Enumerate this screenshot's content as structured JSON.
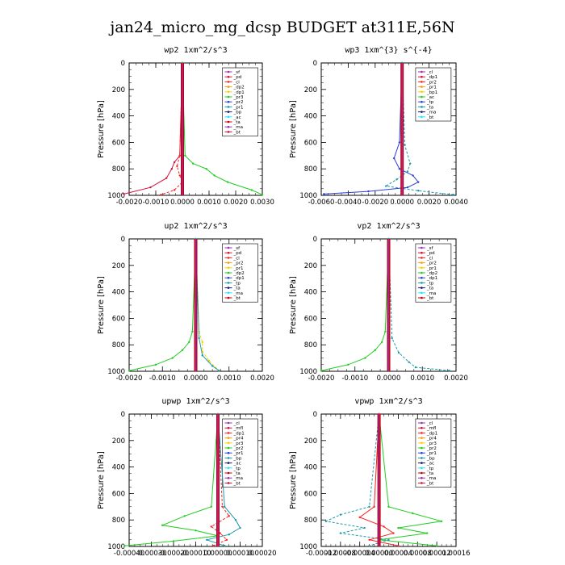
{
  "figure_title": "jan24_micro_mg_dcsp  BUDGET at311E,56N",
  "colors": {
    "purple": "#9a2fb5",
    "crimson": "#d0103a",
    "red": "#ff2020",
    "orange": "#ff9900",
    "yellow": "#f5d000",
    "green": "#22cc22",
    "blue": "#2a3fd8",
    "teal": "#1a9aa8",
    "navy": "#1a1a6a",
    "cyan": "#22e0ff",
    "darkred": "#c00000"
  },
  "chart_data": [
    {
      "type": "line",
      "title": "wp2   1xm^2/s^3",
      "ylabel": "Pressure [hPa]",
      "xlim": [
        -0.002,
        0.003
      ],
      "ylim": [
        1000,
        0
      ],
      "xticks": [
        "-0.0020",
        "-0.0010",
        "0.0000",
        "0.0010",
        "0.0020",
        "0.0030"
      ],
      "yticks": [
        "0",
        "200",
        "400",
        "600",
        "800",
        "1000"
      ],
      "legend": [
        "_sf",
        "_pd",
        "_cl",
        "_dp2",
        "_dp1",
        "_pr3",
        "_pr2",
        "_pr1",
        "_bp",
        "_ac",
        "_ta",
        "_ma",
        "_bt"
      ],
      "series": [
        {
          "name": "_dp1",
          "color": "#d0103a",
          "x": [
            0.0,
            -0.0001,
            -0.0003,
            -0.0004,
            -0.0006,
            -0.0012,
            -0.0022
          ],
          "y": [
            0,
            700,
            750,
            800,
            870,
            940,
            990
          ]
        },
        {
          "name": "_pr1",
          "color": "#ff2020",
          "x": [
            0.0,
            -0.0001,
            -0.0002,
            -0.0001,
            0.0,
            -0.0003,
            -0.0008
          ],
          "y": [
            0,
            700,
            780,
            850,
            900,
            960,
            995
          ]
        },
        {
          "name": "_ac",
          "color": "#22cc22",
          "x": [
            0.0,
            0.0001,
            0.0004,
            0.0009,
            0.0012,
            0.0017,
            0.0026,
            0.003
          ],
          "y": [
            0,
            700,
            760,
            800,
            850,
            900,
            960,
            995
          ]
        },
        {
          "name": "_bt",
          "color": "#c00000",
          "x": [
            0.0,
            0.0,
            0.0,
            0.0,
            0.0
          ],
          "y": [
            0,
            250,
            500,
            750,
            1000
          ]
        }
      ]
    },
    {
      "type": "line",
      "title": "wp3   1xm^{3} s^{-4}",
      "ylabel": "Pressure [hPa]",
      "xlim": [
        -0.006,
        0.004
      ],
      "ylim": [
        1000,
        0
      ],
      "xticks": [
        "-0.0060",
        "-0.0040",
        "-0.0020",
        "0.0000",
        "0.0020",
        "0.0040"
      ],
      "yticks": [
        "0",
        "200",
        "400",
        "600",
        "800",
        "1000"
      ],
      "legend": [
        "_cl",
        "_dp1",
        "_pr2",
        "_pr1",
        "_bp1",
        "_ac",
        "_tp",
        "_ta",
        "_ma",
        "_bt"
      ],
      "series": [
        {
          "name": "_tp",
          "color": "#2a3fd8",
          "x": [
            0.0,
            -0.0002,
            -0.0006,
            -0.0002,
            0.0008,
            0.0012,
            0.0004,
            -0.0025,
            -0.0058
          ],
          "y": [
            0,
            600,
            720,
            800,
            850,
            900,
            940,
            970,
            990
          ]
        },
        {
          "name": "_ac",
          "color": "#1a9aa8",
          "x": [
            0.0,
            0.0002,
            0.0006,
            0.0004,
            -0.0004,
            -0.0012,
            0.0012,
            0.0038
          ],
          "y": [
            0,
            620,
            760,
            820,
            880,
            930,
            965,
            995
          ]
        },
        {
          "name": "_bt",
          "color": "#c00000",
          "x": [
            0.0,
            0.0,
            0.0,
            0.0,
            0.0
          ],
          "y": [
            0,
            250,
            500,
            750,
            1000
          ]
        }
      ]
    },
    {
      "type": "line",
      "title": "up2   1xm^2/s^3",
      "ylabel": "Pressure [hPa]",
      "xlim": [
        -0.002,
        0.002
      ],
      "ylim": [
        1000,
        0
      ],
      "xticks": [
        "-0.0020",
        "-0.0010",
        "0.0000",
        "0.0010",
        "0.0020"
      ],
      "yticks": [
        "0",
        "200",
        "400",
        "600",
        "800",
        "1000"
      ],
      "legend": [
        "_sf",
        "_pd",
        "_cl",
        "_pr2",
        "_pr1",
        "_dp2",
        "_dp1",
        "_tp",
        "_ta",
        "_ma",
        "_bt"
      ],
      "series": [
        {
          "name": "_dp1",
          "color": "#22cc22",
          "x": [
            0.0,
            -0.0001,
            -0.0002,
            -0.0004,
            -0.0007,
            -0.0012,
            -0.002
          ],
          "y": [
            0,
            700,
            780,
            840,
            900,
            950,
            995
          ]
        },
        {
          "name": "_pr2",
          "color": "#f5d000",
          "x": [
            0.0,
            0.0001,
            0.0002,
            0.0002,
            0.0004,
            0.0007
          ],
          "y": [
            0,
            700,
            780,
            850,
            920,
            995
          ]
        },
        {
          "name": "_tp",
          "color": "#1a9aa8",
          "x": [
            0.0,
            0.0001,
            0.0002,
            0.0005,
            0.0007
          ],
          "y": [
            0,
            750,
            880,
            960,
            995
          ]
        },
        {
          "name": "_bt",
          "color": "#c00000",
          "x": [
            0.0,
            0.0,
            0.0,
            0.0,
            0.0
          ],
          "y": [
            0,
            250,
            500,
            750,
            1000
          ]
        }
      ]
    },
    {
      "type": "line",
      "title": "vp2   1xm^2/s^3",
      "ylabel": "Pressure [hPa]",
      "xlim": [
        -0.002,
        0.002
      ],
      "ylim": [
        1000,
        0
      ],
      "xticks": [
        "-0.0020",
        "-0.0010",
        "0.0000",
        "0.0010",
        "0.0020"
      ],
      "yticks": [
        "0",
        "200",
        "400",
        "600",
        "800",
        "1000"
      ],
      "legend": [
        "_sf",
        "_pd",
        "_cl",
        "_pr2",
        "_pr1",
        "_dp2",
        "_dp1",
        "_tp",
        "_ta",
        "_ma",
        "_bt"
      ],
      "series": [
        {
          "name": "_dp1",
          "color": "#22cc22",
          "x": [
            0.0,
            -0.0001,
            -0.0002,
            -0.0004,
            -0.0007,
            -0.0012,
            -0.002
          ],
          "y": [
            0,
            700,
            780,
            840,
            900,
            950,
            995
          ]
        },
        {
          "name": "_tp",
          "color": "#1a9aa8",
          "x": [
            0.0,
            0.0001,
            0.0003,
            0.0006,
            0.0008,
            0.0018
          ],
          "y": [
            0,
            750,
            860,
            930,
            970,
            995
          ]
        },
        {
          "name": "_bt",
          "color": "#c00000",
          "x": [
            0.0,
            0.0,
            0.0,
            0.0,
            0.0
          ],
          "y": [
            0,
            250,
            500,
            750,
            1000
          ]
        }
      ]
    },
    {
      "type": "line",
      "title": "upwp   1xm^2/s^3",
      "ylabel": "Pressure [hPa]",
      "xlim": [
        -0.0004,
        0.0002
      ],
      "ylim": [
        1000,
        0
      ],
      "xticks": [
        "-0.00040",
        "-0.00030",
        "-0.00020",
        "-0.00010",
        "0.00000",
        "0.00010",
        "0.00020"
      ],
      "yticks": [
        "0",
        "200",
        "400",
        "600",
        "800",
        "1000"
      ],
      "legend": [
        "_cl",
        "_mfl",
        "_dp1",
        "_pr4",
        "_pr3",
        "_pr2",
        "_pr1",
        "_bp",
        "_ac",
        "_tp",
        "_ta",
        "_ma",
        "_bt"
      ],
      "series": [
        {
          "name": "_ac",
          "color": "#22cc22",
          "x": [
            0.0,
            -3e-05,
            -0.00015,
            -0.00025,
            -0.0001,
            0.0,
            -0.0002,
            -0.00042
          ],
          "y": [
            0,
            700,
            770,
            840,
            880,
            920,
            960,
            995
          ]
        },
        {
          "name": "_pr1",
          "color": "#ff2020",
          "x": [
            0.0,
            2e-05,
            5e-05,
            -3e-05,
            1e-05,
            4e-05,
            -2e-05
          ],
          "y": [
            0,
            700,
            770,
            850,
            900,
            950,
            995
          ]
        },
        {
          "name": "_tp",
          "color": "#1a9aa8",
          "x": [
            0.0,
            3e-05,
            8e-05,
            0.0001,
            5e-05,
            -5e-05,
            3e-05
          ],
          "y": [
            0,
            700,
            800,
            860,
            910,
            950,
            995
          ]
        },
        {
          "name": "_bt",
          "color": "#c00000",
          "x": [
            0.0,
            0.0,
            0.0,
            0.0,
            0.0
          ],
          "y": [
            0,
            250,
            500,
            750,
            1000
          ]
        }
      ]
    },
    {
      "type": "line",
      "title": "vpwp   1xm^2/s^3",
      "ylabel": "Pressure [hPa]",
      "xlim": [
        -0.00012,
        0.00016
      ],
      "ylim": [
        1000,
        0
      ],
      "xticks": [
        "-0.00012",
        "-0.00008",
        "-0.00004",
        "0.00000",
        "0.00004",
        "0.00008",
        "0.00012",
        "0.00016"
      ],
      "yticks": [
        "0",
        "200",
        "400",
        "600",
        "800",
        "1000"
      ],
      "legend": [
        "_cl",
        "_mfl",
        "_dp1",
        "_pr4",
        "_pr3",
        "_pr2",
        "_pr1",
        "_bp",
        "_ac",
        "_tp",
        "_ta",
        "_ma",
        "_bt"
      ],
      "series": [
        {
          "name": "_ac",
          "color": "#22cc22",
          "x": [
            0.0,
            2e-05,
            7e-05,
            0.00013,
            4e-05,
            0.0001,
            0.0,
            0.00012
          ],
          "y": [
            0,
            700,
            750,
            810,
            860,
            900,
            950,
            995
          ]
        },
        {
          "name": "_tp",
          "color": "#1a9aa8",
          "x": [
            0.0,
            -2e-05,
            -8e-05,
            -0.00011,
            -3e-05,
            -8e-05,
            2e-05,
            -2e-05
          ],
          "y": [
            0,
            700,
            760,
            810,
            860,
            900,
            950,
            995
          ]
        },
        {
          "name": "_pr1",
          "color": "#ff2020",
          "x": [
            0.0,
            -1e-05,
            -4e-05,
            1e-05,
            3e-05,
            -2e-05,
            4e-05
          ],
          "y": [
            0,
            700,
            780,
            850,
            900,
            950,
            995
          ]
        },
        {
          "name": "_bt",
          "color": "#c00000",
          "x": [
            0.0,
            0.0,
            0.0,
            0.0,
            0.0
          ],
          "y": [
            0,
            250,
            500,
            750,
            1000
          ]
        }
      ]
    }
  ]
}
